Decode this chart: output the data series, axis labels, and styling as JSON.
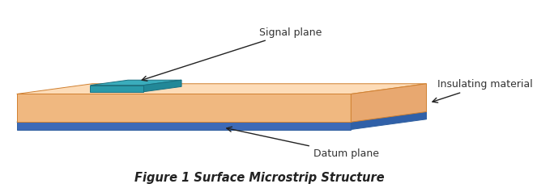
{
  "title": "Figure 1 Surface Microstrip Structure",
  "title_fontsize": 10.5,
  "background_color": "#ffffff",
  "labels": {
    "signal": "Signal plane",
    "insulating": "Insulating material",
    "datum": "Datum plane"
  },
  "colors": {
    "insulating_top": "#FDDCB8",
    "insulating_front": "#F0B880",
    "insulating_side": "#E8A870",
    "datum_top": "#5080C8",
    "datum_front": "#3D6AB8",
    "datum_side": "#3060A8",
    "signal_top": "#3AACBC",
    "signal_front": "#2A9AAA",
    "signal_side": "#228898",
    "ins_edge": "#D08030",
    "datum_edge": "#3060A0",
    "signal_edge": "#1A7080"
  },
  "anno_fontsize": 9,
  "anno_color": "#333333"
}
